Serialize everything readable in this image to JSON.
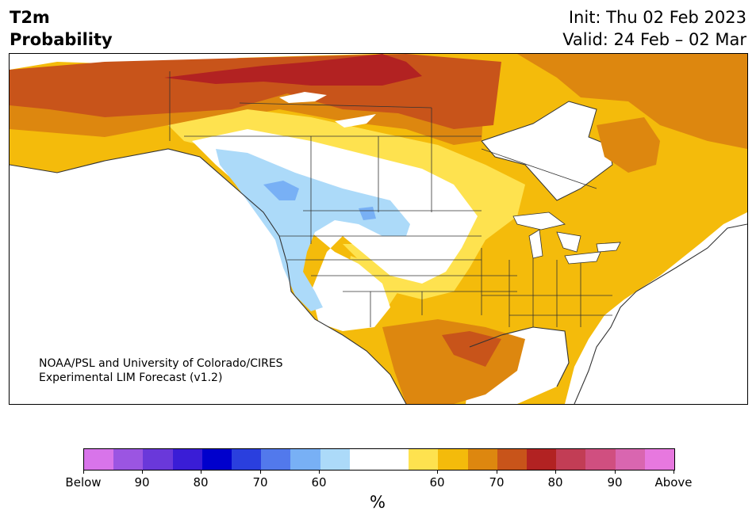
{
  "header": {
    "title_line1": "T2m",
    "title_line2": "Probability",
    "init": "Init: Thu 02 Feb 2023",
    "valid": "Valid: 24 Feb – 02 Mar"
  },
  "credit": {
    "line1": "NOAA/PSL and University of Colorado/CIRES",
    "line2": "Experimental LIM Forecast (v1.2)"
  },
  "colorbar": {
    "unit": "%",
    "colors": [
      "#d874ea",
      "#9b55e2",
      "#6a38da",
      "#3a1dd6",
      "#0000cc",
      "#2a3fde",
      "#5279ec",
      "#78b0f5",
      "#acdaf9",
      "#ffffff",
      "#ffffff",
      "#fee24f",
      "#f4bb0b",
      "#dd870f",
      "#c8541a",
      "#b22222",
      "#c23d55",
      "#d04f80",
      "#d966b0",
      "#e778df"
    ],
    "labels": [
      "Below",
      "90",
      "80",
      "70",
      "60",
      "60",
      "70",
      "80",
      "90",
      "Above"
    ]
  },
  "legend_colors": {
    "below_light": "#acdaf9",
    "below_mid": "#78b0f5",
    "above_60": "#fee24f",
    "above_65": "#f4bb0b",
    "above_70": "#dd870f",
    "above_75": "#c8541a",
    "above_80": "#b22222"
  }
}
